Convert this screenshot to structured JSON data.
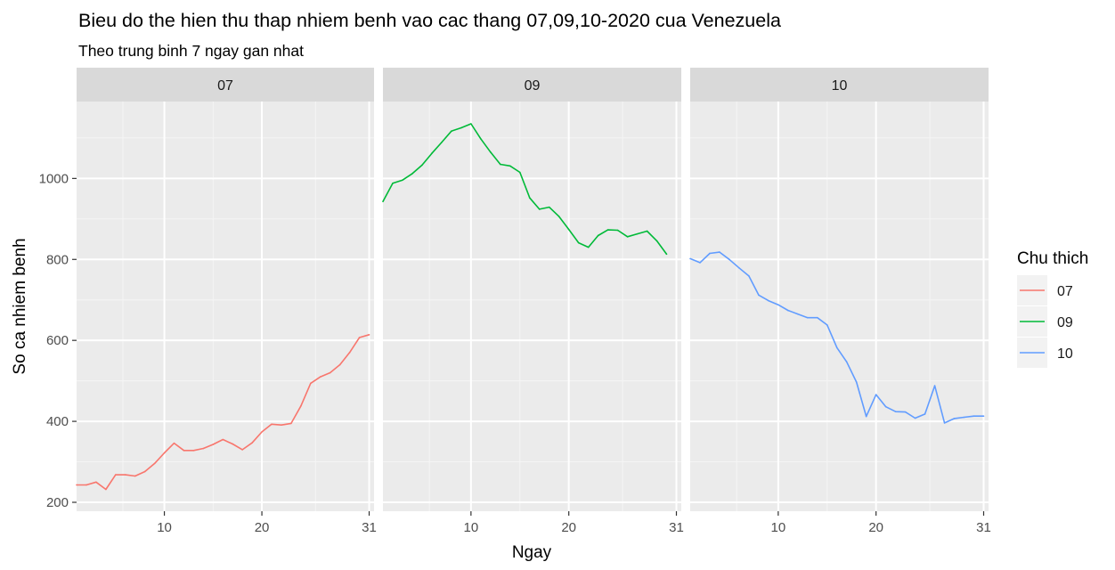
{
  "colors": {
    "panel_bg": "#EBEBEB",
    "strip_bg": "#D9D9D9",
    "grid_major": "#FFFFFF",
    "grid_minor": "#F5F5F5",
    "axis_text": "#4D4D4D",
    "text": "#1A1A1A",
    "tick": "#333333"
  },
  "chart_data": {
    "type": "line",
    "title": "Bieu do the hien thu thap nhiem benh vao cac thang 07,09,10-2020 cua Venezuela",
    "subtitle": "Theo trung binh 7 ngay gan nhat",
    "xlabel": "Ngay",
    "ylabel": "So ca nhiem benh",
    "facet_by": "month",
    "xlim": [
      1,
      31.5
    ],
    "ylim": [
      178,
      1190
    ],
    "x_ticks": [
      10,
      20,
      31
    ],
    "y_ticks": [
      200,
      400,
      600,
      800,
      1000
    ],
    "legend": {
      "title": "Chu thich",
      "position": "right",
      "entries": [
        "07",
        "09",
        "10"
      ]
    },
    "series": [
      {
        "name": "07",
        "facet": "07",
        "color": "#F8766D",
        "x": [
          1,
          2,
          3,
          4,
          5,
          6,
          7,
          8,
          9,
          10,
          11,
          12,
          13,
          14,
          15,
          16,
          17,
          18,
          19,
          20,
          21,
          22,
          23,
          24,
          25,
          26,
          27,
          28,
          29,
          30,
          31
        ],
        "values": [
          243,
          243,
          250,
          232,
          268,
          268,
          265,
          276,
          296,
          322,
          346,
          328,
          328,
          333,
          343,
          355,
          344,
          330,
          347,
          374,
          393,
          391,
          395,
          438,
          494,
          510,
          520,
          540,
          570,
          607,
          614
        ]
      },
      {
        "name": "09",
        "facet": "09",
        "color": "#00BA38",
        "x": [
          1,
          2,
          3,
          4,
          5,
          6,
          7,
          8,
          9,
          10,
          11,
          12,
          13,
          14,
          15,
          16,
          17,
          18,
          19,
          20,
          21,
          22,
          23,
          24,
          25,
          26,
          27,
          28,
          29,
          30
        ],
        "values": [
          943,
          988,
          996,
          1012,
          1033,
          1062,
          1089,
          1117,
          1125,
          1135,
          1098,
          1065,
          1035,
          1031,
          1015,
          952,
          924,
          929,
          906,
          874,
          841,
          830,
          859,
          873,
          872,
          856,
          863,
          870,
          846,
          813
        ]
      },
      {
        "name": "10",
        "facet": "10",
        "color": "#619CFF",
        "x": [
          1,
          2,
          3,
          4,
          5,
          6,
          7,
          8,
          9,
          10,
          11,
          12,
          13,
          14,
          15,
          16,
          17,
          18,
          19,
          20,
          21,
          22,
          23,
          24,
          25,
          26,
          27,
          28,
          29,
          30,
          31
        ],
        "values": [
          802,
          792,
          815,
          818,
          800,
          779,
          759,
          712,
          698,
          688,
          674,
          665,
          656,
          656,
          638,
          582,
          547,
          497,
          412,
          466,
          436,
          424,
          423,
          408,
          418,
          488,
          396,
          407,
          410,
          413,
          413
        ]
      }
    ],
    "panels": [
      "07",
      "09",
      "10"
    ]
  }
}
